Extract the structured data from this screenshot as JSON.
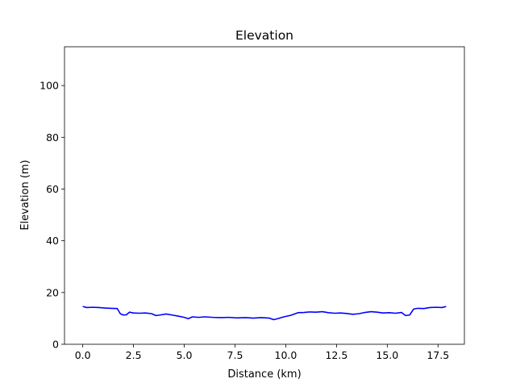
{
  "chart_data": {
    "type": "line",
    "title": "Elevation",
    "xlabel": "Distance (km)",
    "ylabel": "Elevation (m)",
    "xlim": [
      -0.9,
      18.8
    ],
    "ylim": [
      0,
      115
    ],
    "xticks": [
      0.0,
      2.5,
      5.0,
      7.5,
      10.0,
      12.5,
      15.0,
      17.5
    ],
    "xtick_labels": [
      "0.0",
      "2.5",
      "5.0",
      "7.5",
      "10.0",
      "12.5",
      "15.0",
      "17.5"
    ],
    "yticks": [
      0,
      20,
      40,
      60,
      80,
      100
    ],
    "ytick_labels": [
      "0",
      "20",
      "40",
      "60",
      "80",
      "100"
    ],
    "grid": false,
    "series": [
      {
        "color": "#0000ff",
        "x": [
          0.0,
          0.2,
          0.5,
          0.8,
          1.1,
          1.4,
          1.7,
          1.85,
          2.0,
          2.15,
          2.3,
          2.5,
          2.8,
          3.1,
          3.4,
          3.6,
          3.8,
          4.1,
          4.4,
          4.7,
          5.0,
          5.2,
          5.4,
          5.7,
          6.0,
          6.4,
          6.8,
          7.2,
          7.6,
          8.0,
          8.4,
          8.8,
          9.2,
          9.4,
          9.6,
          9.9,
          10.2,
          10.4,
          10.6,
          10.9,
          11.2,
          11.5,
          11.8,
          12.1,
          12.4,
          12.7,
          13.0,
          13.3,
          13.6,
          13.9,
          14.2,
          14.5,
          14.8,
          15.1,
          15.4,
          15.7,
          15.9,
          16.1,
          16.3,
          16.5,
          16.8,
          17.1,
          17.4,
          17.7,
          17.9
        ],
        "y": [
          14.6,
          14.2,
          14.3,
          14.2,
          14.0,
          13.9,
          13.8,
          11.8,
          11.3,
          11.4,
          12.4,
          12.1,
          12.0,
          12.1,
          11.8,
          11.1,
          11.3,
          11.7,
          11.3,
          10.9,
          10.4,
          9.9,
          10.6,
          10.4,
          10.6,
          10.4,
          10.3,
          10.4,
          10.2,
          10.3,
          10.1,
          10.3,
          10.1,
          9.5,
          9.9,
          10.6,
          11.1,
          11.6,
          12.2,
          12.3,
          12.5,
          12.4,
          12.6,
          12.2,
          12.0,
          12.1,
          11.9,
          11.6,
          11.8,
          12.3,
          12.6,
          12.4,
          12.1,
          12.2,
          12.0,
          12.3,
          11.1,
          11.3,
          13.6,
          13.9,
          13.8,
          14.2,
          14.3,
          14.2,
          14.6
        ]
      }
    ]
  }
}
